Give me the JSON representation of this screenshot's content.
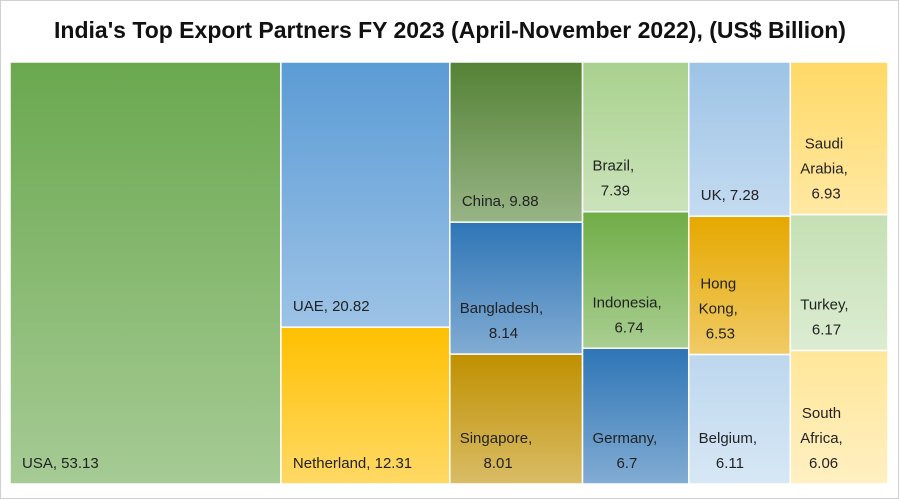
{
  "chart_data": {
    "type": "treemap",
    "title": "India's Top Export Partners FY 2023 (April-November 2022), (US$ Billion)",
    "values": [
      53.13,
      20.82,
      12.31,
      9.88,
      8.14,
      8.01,
      7.39,
      6.74,
      6.7,
      7.28,
      6.53,
      6.11,
      6.93,
      6.17,
      6.06
    ],
    "value_labels": [
      "USA, 53.13",
      "UAE, 20.82",
      "Netherland, 12.31",
      "China, 9.88",
      "Bangladesh, 8.14",
      "Singapore, 8.01",
      "Brazil, 7.39",
      "Indonesia, 6.74",
      "Germany, 6.7",
      "UK, 7.28",
      "Hong Kong, 6.53",
      "Belgium, 6.11",
      "Saudi Arabia, 6.93",
      "Turkey, 6.17",
      "South Africa, 6.06"
    ],
    "colors": [
      "#6aa84f",
      "#5b9bd5",
      "#ffc000",
      "#548235",
      "#2e75b6",
      "#bf9000",
      "#a9d18e",
      "#70ad47",
      "#2e75b6",
      "#9dc3e6",
      "#e6a800",
      "#bdd7ee",
      "#ffd966",
      "#c5e0b4",
      "#ffe699"
    ]
  }
}
